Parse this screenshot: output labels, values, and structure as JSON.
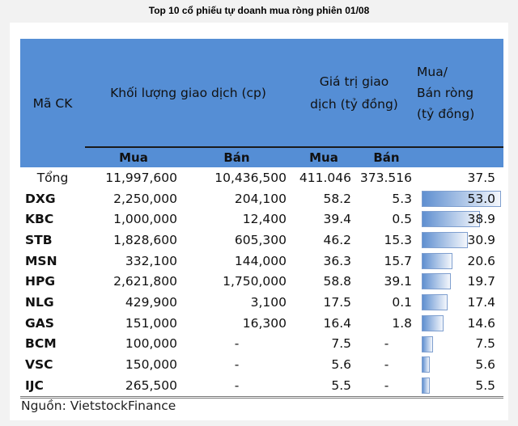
{
  "title": "Top 10 cổ phiếu tự doanh mua ròng phiên 01/08",
  "chart_data": {
    "type": "table",
    "headers": {
      "symbol": "Mã CK",
      "volume": "Khối lượng giao dịch (cp)",
      "value": "Giá trị giao dịch (tỷ đồng)",
      "net_line1": "Mua/",
      "net_line2": "Bán ròng",
      "net_line3": "(tỷ đồng)",
      "buy": "Mua",
      "sell": "Bán"
    },
    "total": {
      "label": "Tổng",
      "vol_buy": "11,997,600",
      "vol_sell": "10,436,500",
      "val_buy": "411.046",
      "val_sell": "373.516",
      "net": "37.5"
    },
    "rows": [
      {
        "symbol": "DXG",
        "vol_buy": "2,250,000",
        "vol_sell": "204,100",
        "val_buy": "58.2",
        "val_sell": "5.3",
        "net": "53.0",
        "net_value": 53.0
      },
      {
        "symbol": "KBC",
        "vol_buy": "1,000,000",
        "vol_sell": "12,400",
        "val_buy": "39.4",
        "val_sell": "0.5",
        "net": "38.9",
        "net_value": 38.9
      },
      {
        "symbol": "STB",
        "vol_buy": "1,828,600",
        "vol_sell": "605,300",
        "val_buy": "46.2",
        "val_sell": "15.3",
        "net": "30.9",
        "net_value": 30.9
      },
      {
        "symbol": "MSN",
        "vol_buy": "332,100",
        "vol_sell": "144,000",
        "val_buy": "36.3",
        "val_sell": "15.7",
        "net": "20.6",
        "net_value": 20.6
      },
      {
        "symbol": "HPG",
        "vol_buy": "2,621,800",
        "vol_sell": "1,750,000",
        "val_buy": "58.8",
        "val_sell": "39.1",
        "net": "19.7",
        "net_value": 19.7
      },
      {
        "symbol": "NLG",
        "vol_buy": "429,900",
        "vol_sell": "3,100",
        "val_buy": "17.5",
        "val_sell": "0.1",
        "net": "17.4",
        "net_value": 17.4
      },
      {
        "symbol": "GAS",
        "vol_buy": "151,000",
        "vol_sell": "16,300",
        "val_buy": "16.4",
        "val_sell": "1.8",
        "net": "14.6",
        "net_value": 14.6
      },
      {
        "symbol": "BCM",
        "vol_buy": "100,000",
        "vol_sell": "-",
        "val_buy": "7.5",
        "val_sell": "-",
        "net": "7.5",
        "net_value": 7.5
      },
      {
        "symbol": "VSC",
        "vol_buy": "150,000",
        "vol_sell": "-",
        "val_buy": "5.6",
        "val_sell": "-",
        "net": "5.6",
        "net_value": 5.6
      },
      {
        "symbol": "IJC",
        "vol_buy": "265,500",
        "vol_sell": "-",
        "val_buy": "5.5",
        "val_sell": "-",
        "net": "5.5",
        "net_value": 5.5
      }
    ],
    "bar_max": 53.0
  },
  "colors": {
    "header": "#558ed5",
    "bar": "#5f8fd0"
  },
  "source": "Nguồn: VietstockFinance"
}
